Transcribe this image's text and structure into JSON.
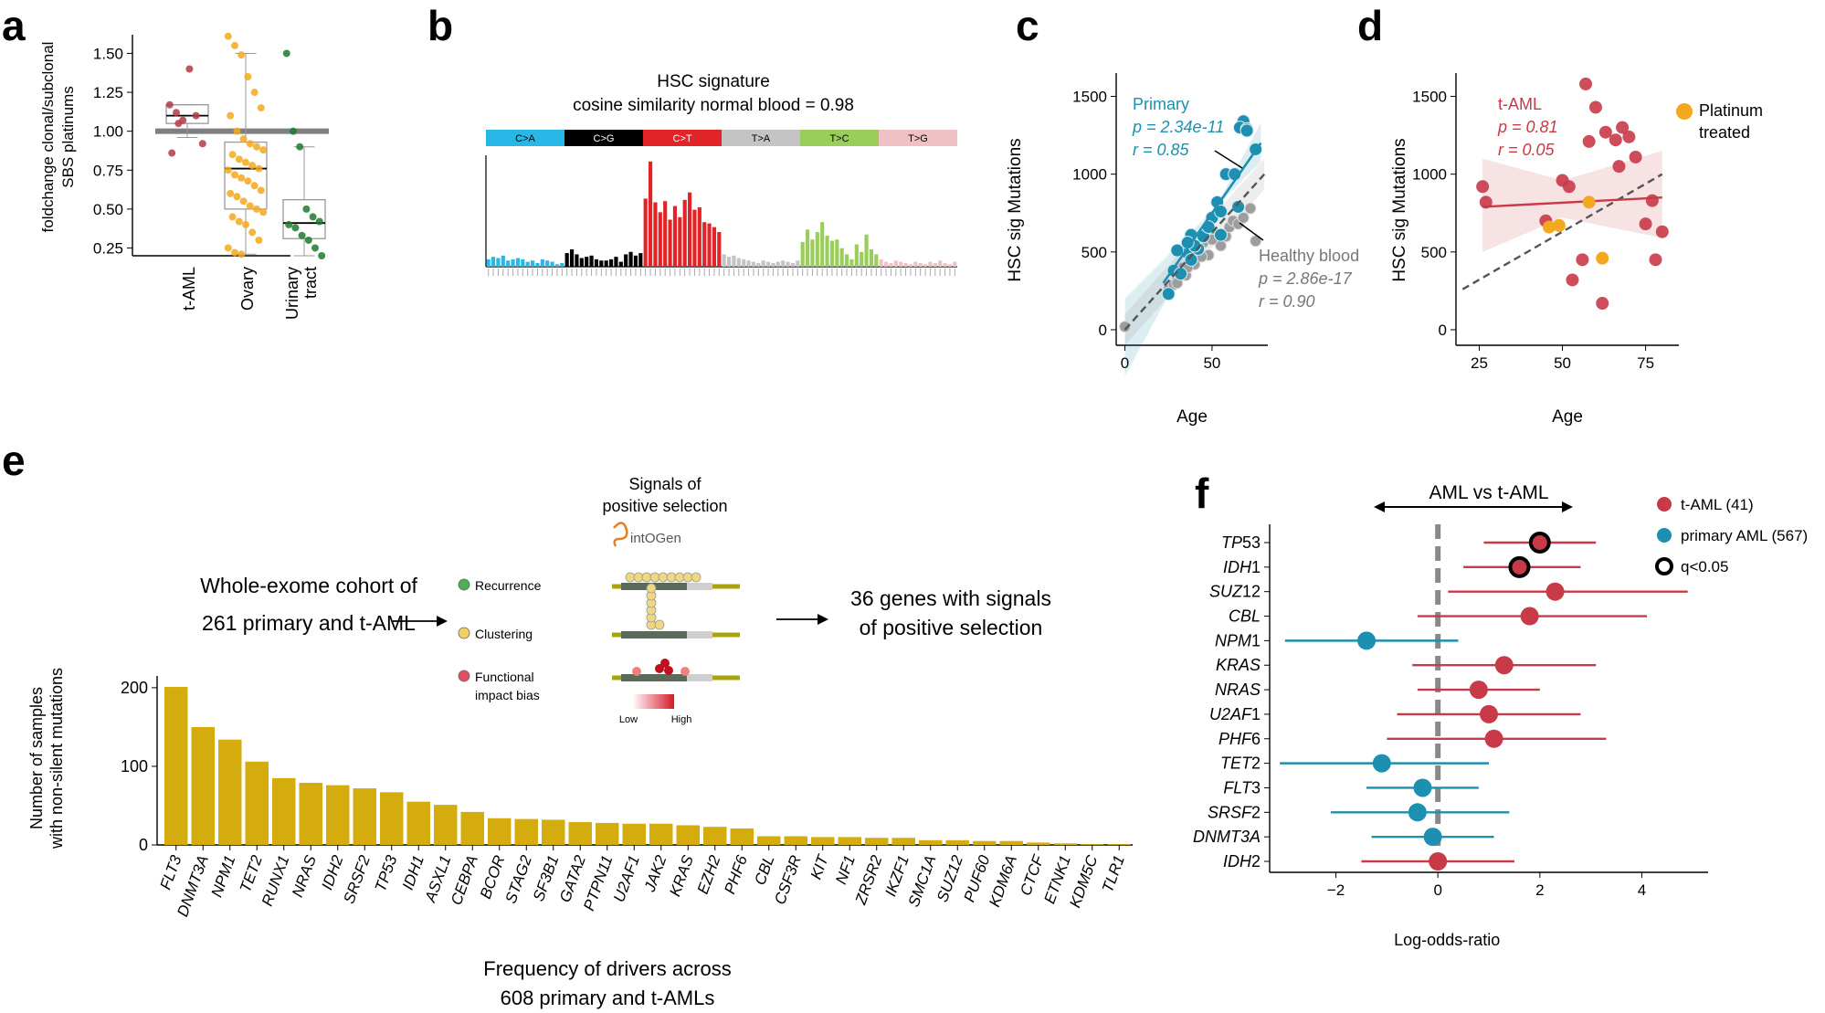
{
  "panel_letters": [
    "a",
    "b",
    "c",
    "d",
    "e",
    "f"
  ],
  "chart_data": [
    {
      "panel": "a",
      "type": "box",
      "ylabel": "foldchange clonal/subclonal\nSBS platinums",
      "ylim": [
        0.2,
        1.62
      ],
      "yticks": [
        "1.50",
        "1.25",
        "1.00",
        "0.75",
        "0.50",
        "0.25"
      ],
      "categories": [
        "t-AML",
        "Ovary",
        "Urinary\ntract"
      ],
      "reference_line": 1.0,
      "colors": [
        "#b23a48",
        "#f4a81d",
        "#1f7a2e"
      ],
      "boxes": [
        {
          "name": "t-AML",
          "q1": 1.05,
          "median": 1.1,
          "q3": 1.17,
          "whisker_low": 0.96,
          "whisker_high": 1.17
        },
        {
          "name": "Ovary",
          "q1": 0.5,
          "median": 0.76,
          "q3": 0.93,
          "whisker_low": 0.21,
          "whisker_high": 1.5
        },
        {
          "name": "Urinary tract",
          "q1": 0.31,
          "median": 0.41,
          "q3": 0.56,
          "whisker_low": 0.2,
          "whisker_high": 0.9
        }
      ],
      "points": [
        [
          1.17,
          1.12,
          1.07,
          1.4,
          1.1,
          0.92,
          0.86,
          1.05
        ],
        [
          1.61,
          1.55,
          1.49,
          1.35,
          1.25,
          1.15,
          1.1,
          1.0,
          0.95,
          0.92,
          0.9,
          0.88,
          0.85,
          0.82,
          0.8,
          0.78,
          0.76,
          0.75,
          0.72,
          0.7,
          0.68,
          0.65,
          0.62,
          0.6,
          0.58,
          0.55,
          0.52,
          0.5,
          0.48,
          0.45,
          0.42,
          0.4,
          0.35,
          0.3,
          0.25,
          0.22,
          0.21
        ],
        [
          1.5,
          1.0,
          0.9,
          0.5,
          0.45,
          0.42,
          0.4,
          0.38,
          0.33,
          0.3,
          0.25,
          0.2
        ]
      ]
    },
    {
      "panel": "b",
      "type": "bar",
      "title_line1": "HSC signature",
      "title_line2": "cosine similarity normal blood = 0.98",
      "groups": [
        {
          "label": "C>A",
          "color": "#29b7e8",
          "text": "#000000",
          "values": [
            6,
            8,
            7,
            9,
            5,
            6,
            7,
            6,
            4,
            5,
            3,
            6,
            5,
            4,
            2,
            3
          ]
        },
        {
          "label": "C>G",
          "color": "#000000",
          "text": "#ffffff",
          "values": [
            11,
            14,
            10,
            7,
            8,
            9,
            6,
            5,
            5,
            6,
            8,
            4,
            10,
            12,
            9,
            11
          ]
        },
        {
          "label": "C>T",
          "color": "#e02428",
          "text": "#ffffff",
          "values": [
            55,
            85,
            52,
            44,
            53,
            38,
            49,
            40,
            54,
            60,
            46,
            48,
            36,
            35,
            32,
            28
          ]
        },
        {
          "label": "T>A",
          "color": "#c4c4c4",
          "text": "#000000",
          "values": [
            10,
            8,
            9,
            7,
            6,
            5,
            4,
            3,
            5,
            4,
            3,
            4,
            5,
            4,
            3,
            5
          ]
        },
        {
          "label": "T>C",
          "color": "#9ace5b",
          "text": "#000000",
          "values": [
            20,
            30,
            22,
            28,
            36,
            25,
            21,
            22,
            15,
            10,
            6,
            18,
            12,
            26,
            14,
            10
          ]
        },
        {
          "label": "T>G",
          "color": "#efc1c5",
          "text": "#000000",
          "values": [
            6,
            4,
            3,
            5,
            4,
            3,
            2,
            4,
            3,
            2,
            4,
            3,
            5,
            3,
            2,
            4
          ]
        }
      ]
    },
    {
      "panel": "c",
      "type": "scatter",
      "xlabel": "Age",
      "ylabel": "HSC sig Mutations",
      "xlim": [
        -5,
        82
      ],
      "ylim": [
        -100,
        1650
      ],
      "xticks": [
        0,
        50
      ],
      "yticks": [
        0,
        500,
        1000,
        1500
      ],
      "series": [
        {
          "name": "Primary",
          "color": "#1d8fb1",
          "p": "p = 2.34e-11",
          "r": "r = 0.85",
          "x": [
            68,
            66,
            70,
            75,
            58,
            63,
            53,
            55,
            65,
            50,
            38,
            42,
            35,
            38,
            30,
            25,
            45,
            40,
            36,
            28,
            32,
            55,
            48,
            70
          ],
          "y": [
            1340,
            1300,
            1290,
            1160,
            1000,
            1000,
            820,
            610,
            790,
            720,
            610,
            520,
            500,
            450,
            510,
            230,
            600,
            540,
            560,
            380,
            360,
            760,
            660,
            1280
          ],
          "fit": [
            [
              0,
              -60
            ],
            [
              78,
              1200
            ]
          ]
        },
        {
          "name": "Healthy blood",
          "color": "#8c8c8c",
          "p": "p = 2.86e-17",
          "r": "r = 0.90",
          "x": [
            0,
            25,
            28,
            30,
            33,
            35,
            38,
            40,
            42,
            45,
            48,
            50,
            52,
            55,
            58,
            60,
            62,
            65,
            68,
            72,
            75,
            30,
            36,
            44,
            50
          ],
          "y": [
            20,
            260,
            290,
            340,
            400,
            350,
            450,
            420,
            520,
            560,
            480,
            620,
            580,
            540,
            600,
            660,
            700,
            680,
            720,
            780,
            570,
            300,
            400,
            470,
            580
          ],
          "fit": [
            [
              0,
              0
            ],
            [
              80,
              1000
            ]
          ]
        }
      ]
    },
    {
      "panel": "d",
      "type": "scatter",
      "xlabel": "Age",
      "ylabel": "HSC sig Mutations",
      "xlim": [
        18,
        85
      ],
      "ylim": [
        -100,
        1650
      ],
      "xticks": [
        25,
        50,
        75
      ],
      "yticks": [
        0,
        500,
        1000,
        1500
      ],
      "series": [
        {
          "name": "t-AML",
          "color": "#c83a48",
          "p": "p = 0.81",
          "r": "r = 0.05",
          "x": [
            26,
            27,
            45,
            50,
            52,
            57,
            58,
            60,
            63,
            66,
            67,
            68,
            70,
            72,
            75,
            77,
            78,
            80,
            56,
            53,
            62
          ],
          "y": [
            920,
            820,
            700,
            960,
            920,
            1580,
            1210,
            1430,
            1270,
            1220,
            1050,
            1300,
            1240,
            1110,
            680,
            830,
            450,
            630,
            450,
            320,
            170
          ],
          "fit": [
            [
              26,
              790
            ],
            [
              80,
              850
            ]
          ]
        },
        {
          "name": "Platinum treated",
          "color": "#f4a81d",
          "x": [
            46,
            49,
            58,
            62
          ],
          "y": [
            660,
            670,
            820,
            460
          ]
        }
      ],
      "reference_fit": [
        [
          20,
          260
        ],
        [
          80,
          1000
        ]
      ]
    },
    {
      "panel": "e",
      "type": "bar",
      "ylabel": "Number of samples\nwith non-silent mutations",
      "xlabel": "Frequency of drivers across\n608 primary and t-AMLs",
      "ylim": [
        0,
        215
      ],
      "yticks": [
        0,
        100,
        200
      ],
      "color": "#d4ac0d",
      "categories": [
        "FLT3",
        "DNMT3A",
        "NPM1",
        "TET2",
        "RUNX1",
        "NRAS",
        "IDH2",
        "SRSF2",
        "TP53",
        "IDH1",
        "ASXL1",
        "CEBPA",
        "BCOR",
        "STAG2",
        "SF3B1",
        "GATA2",
        "PTPN11",
        "U2AF1",
        "JAK2",
        "KRAS",
        "EZH2",
        "PHF6",
        "CBL",
        "CSF3R",
        "KIT",
        "NF1",
        "ZRSR2",
        "IKZF1",
        "SMC1A",
        "SUZ12",
        "PUF60",
        "KDM6A",
        "CTCF",
        "ETNK1",
        "KDM5C",
        "TLR1"
      ],
      "values": [
        201,
        150,
        134,
        106,
        85,
        79,
        76,
        72,
        67,
        55,
        51,
        42,
        34,
        33,
        32,
        29,
        28,
        27,
        27,
        25,
        23,
        21,
        11,
        11,
        10,
        10,
        9,
        9,
        6,
        6,
        5,
        5,
        3,
        2,
        1,
        1
      ]
    },
    {
      "panel": "f",
      "type": "forest",
      "xlabel": "Log-odds-ratio",
      "arrow_label": "AML vs t-AML",
      "xlim": [
        -3.3,
        5.3
      ],
      "xticks": [
        "−2",
        "0",
        "2",
        "4"
      ],
      "xtick_values": [
        -2,
        0,
        2,
        4
      ],
      "legend": [
        "t-AML (41)",
        "primary AML (567)",
        "q<0.05"
      ],
      "colors": {
        "tAML": "#c83a48",
        "primary": "#1d8fb1"
      },
      "genes": [
        {
          "pre": "TP",
          "post": "53",
          "italic_all": false,
          "est": 2.0,
          "lo": 0.9,
          "hi": 3.1,
          "group": "tAML",
          "sig": true
        },
        {
          "pre": "IDH",
          "post": "1",
          "italic_all": false,
          "est": 1.6,
          "lo": 0.5,
          "hi": 2.8,
          "group": "tAML",
          "sig": true
        },
        {
          "pre": "SUZ",
          "post": "12",
          "italic_all": false,
          "est": 2.3,
          "lo": 0.2,
          "hi": 4.9,
          "group": "tAML",
          "sig": false
        },
        {
          "pre": "CBL",
          "post": "",
          "italic_all": true,
          "est": 1.8,
          "lo": -0.4,
          "hi": 4.1,
          "group": "tAML",
          "sig": false
        },
        {
          "pre": "NPM",
          "post": "1",
          "italic_all": false,
          "est": -1.4,
          "lo": -3.0,
          "hi": 0.4,
          "group": "primary",
          "sig": false
        },
        {
          "pre": "KRAS",
          "post": "",
          "italic_all": true,
          "est": 1.3,
          "lo": -0.5,
          "hi": 3.1,
          "group": "tAML",
          "sig": false
        },
        {
          "pre": "NRAS",
          "post": "",
          "italic_all": true,
          "est": 0.8,
          "lo": -0.4,
          "hi": 2.0,
          "group": "tAML",
          "sig": false
        },
        {
          "pre": "U2AF",
          "post": "1",
          "italic_all": false,
          "est": 1.0,
          "lo": -0.8,
          "hi": 2.8,
          "group": "tAML",
          "sig": false
        },
        {
          "pre": "PHF",
          "post": "6",
          "italic_all": false,
          "est": 1.1,
          "lo": -1.0,
          "hi": 3.3,
          "group": "tAML",
          "sig": false
        },
        {
          "pre": "TET",
          "post": "2",
          "italic_all": false,
          "est": -1.1,
          "lo": -3.1,
          "hi": 1.0,
          "group": "primary",
          "sig": false
        },
        {
          "pre": "FLT",
          "post": "3",
          "italic_all": false,
          "est": -0.3,
          "lo": -1.4,
          "hi": 0.8,
          "group": "primary",
          "sig": false
        },
        {
          "pre": "SRSF",
          "post": "2",
          "italic_all": false,
          "est": -0.4,
          "lo": -2.1,
          "hi": 1.4,
          "group": "primary",
          "sig": false
        },
        {
          "pre": "DNMT",
          "post": "3A",
          "italic_all": true,
          "est": -0.1,
          "lo": -1.3,
          "hi": 1.1,
          "group": "primary",
          "sig": false
        },
        {
          "pre": "IDH",
          "post": "2",
          "italic_all": false,
          "est": 0.0,
          "lo": -1.5,
          "hi": 1.5,
          "group": "tAML",
          "sig": false
        }
      ]
    }
  ],
  "schematic": {
    "left_line1": "Whole-exome cohort of",
    "left_line2": "261 primary and t-AML",
    "right_line1": "36 genes with signals",
    "right_line2": "of positive selection",
    "title_line1": "Signals of",
    "title_line2": "positive selection",
    "logo_text": "intOGen",
    "signals": [
      "Recurrence",
      "Clustering",
      "Functional\nimpact bias"
    ],
    "gradient_low": "Low",
    "gradient_high": "High"
  }
}
